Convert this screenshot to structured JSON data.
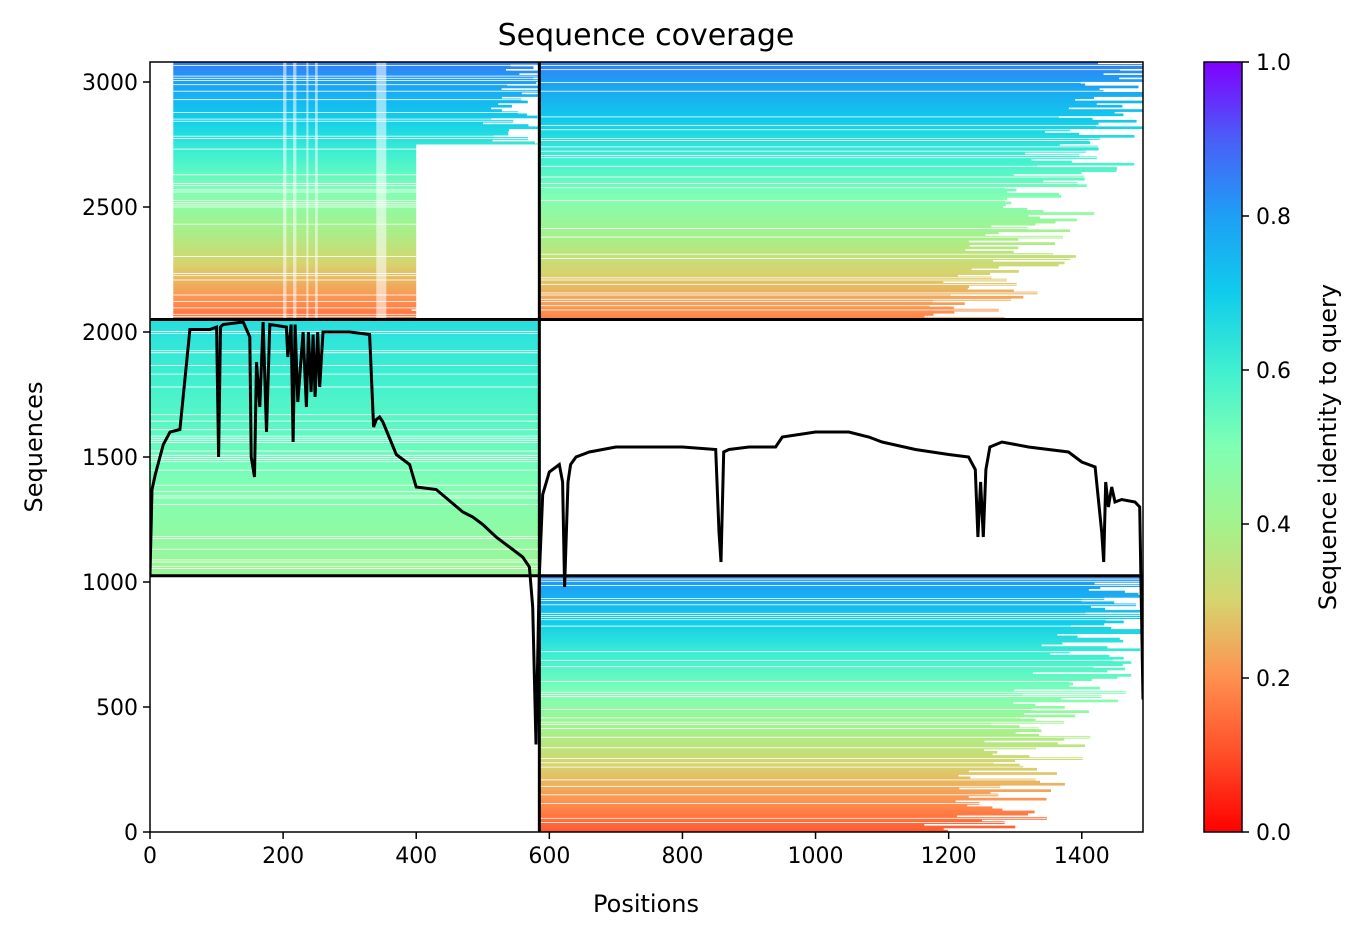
{
  "chart_data": {
    "type": "heatmap",
    "title": "Sequence coverage",
    "xlabel": "Positions",
    "ylabel": "Sequences",
    "xlim": [
      0,
      1492
    ],
    "ylim": [
      0,
      3080
    ],
    "xticks": [
      0,
      200,
      400,
      600,
      800,
      1000,
      1200,
      1400
    ],
    "yticks": [
      0,
      500,
      1000,
      1500,
      2000,
      2500,
      3000
    ],
    "colorbar": {
      "label": "Sequence identity to query",
      "range": [
        0.0,
        1.0
      ],
      "ticks": [
        0.0,
        0.2,
        0.4,
        0.6,
        0.8,
        1.0
      ],
      "tick_labels": [
        "0.0",
        "0.2",
        "0.4",
        "0.6",
        "0.8",
        "1.0"
      ],
      "colormap": "rainbow_r"
    },
    "divisions": {
      "x_boundary": 585,
      "y_boundaries": [
        1025,
        2050
      ]
    },
    "blocks": [
      {
        "name": "top-left",
        "x": [
          35,
          585
        ],
        "y": [
          2050,
          3080
        ],
        "identity_bottom": 0.15,
        "identity_top": 0.85
      },
      {
        "name": "top-right",
        "x": [
          585,
          1492
        ],
        "y": [
          2050,
          3080
        ],
        "identity_bottom": 0.18,
        "identity_top": 0.85
      },
      {
        "name": "middle-left",
        "x": [
          0,
          585
        ],
        "y": [
          1025,
          2050
        ],
        "identity_bottom": 0.42,
        "identity_top": 0.65
      },
      {
        "name": "bottom-right",
        "x": [
          585,
          1492
        ],
        "y": [
          0,
          1025
        ],
        "identity_bottom": 0.12,
        "identity_top": 0.82
      }
    ],
    "coverage_line": {
      "x": [
        0,
        3,
        8,
        20,
        30,
        45,
        60,
        90,
        100,
        103,
        106,
        110,
        140,
        150,
        152,
        157,
        160,
        165,
        170,
        175,
        180,
        205,
        207,
        212,
        215,
        218,
        222,
        230,
        235,
        238,
        242,
        245,
        248,
        252,
        255,
        260,
        300,
        330,
        336,
        340,
        345,
        350,
        370,
        380,
        390,
        400,
        430,
        470,
        485,
        500,
        520,
        540,
        560,
        570,
        575,
        580,
        585,
        590,
        600,
        615,
        620,
        623,
        628,
        632,
        640,
        660,
        700,
        800,
        850,
        855,
        858,
        862,
        870,
        900,
        940,
        950,
        1000,
        1050,
        1080,
        1100,
        1150,
        1200,
        1230,
        1240,
        1244,
        1248,
        1252,
        1256,
        1262,
        1280,
        1320,
        1380,
        1400,
        1420,
        1430,
        1433,
        1436,
        1440,
        1445,
        1450,
        1460,
        1480,
        1487,
        1492
      ],
      "y": [
        1030,
        1370,
        1430,
        1550,
        1600,
        1610,
        2010,
        2010,
        2020,
        1500,
        2020,
        2030,
        2040,
        1980,
        1500,
        1420,
        1880,
        1700,
        2040,
        1600,
        2030,
        2020,
        1900,
        2030,
        1560,
        2030,
        1720,
        2000,
        1700,
        2000,
        1760,
        1990,
        1740,
        2000,
        1780,
        2000,
        2000,
        1990,
        1620,
        1650,
        1660,
        1640,
        1510,
        1490,
        1470,
        1380,
        1370,
        1280,
        1260,
        1230,
        1180,
        1140,
        1100,
        1060,
        900,
        350,
        1025,
        1350,
        1440,
        1470,
        1400,
        980,
        1400,
        1470,
        1500,
        1520,
        1540,
        1540,
        1530,
        1200,
        1080,
        1520,
        1530,
        1540,
        1540,
        1580,
        1600,
        1600,
        1580,
        1560,
        1530,
        1510,
        1500,
        1450,
        1180,
        1400,
        1180,
        1450,
        1540,
        1560,
        1540,
        1520,
        1480,
        1460,
        1200,
        1080,
        1400,
        1300,
        1380,
        1320,
        1330,
        1320,
        1300,
        530
      ]
    }
  }
}
